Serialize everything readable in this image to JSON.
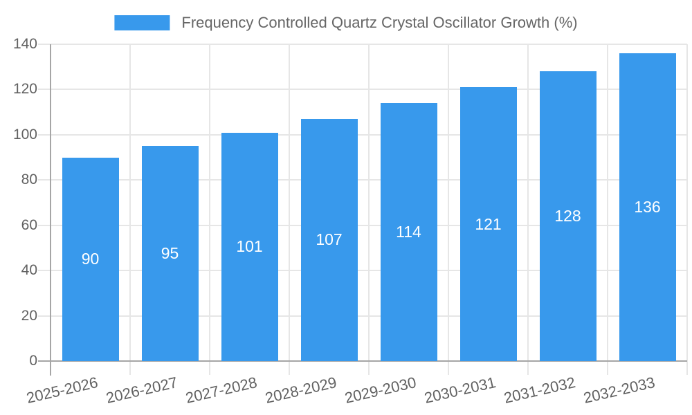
{
  "chart_data": {
    "type": "bar",
    "title": "Frequency Controlled Quartz Crystal Oscillator Growth (%)",
    "categories": [
      "2025-2026",
      "2026-2027",
      "2027-2028",
      "2028-2029",
      "2029-2030",
      "2030-2031",
      "2031-2032",
      "2032-2033"
    ],
    "values": [
      90,
      95,
      101,
      107,
      114,
      121,
      128,
      136
    ],
    "xlabel": "",
    "ylabel": "",
    "ylim": [
      0,
      140
    ],
    "ytick_step": 20,
    "ytick_labels": [
      "0",
      "20",
      "40",
      "60",
      "80",
      "100",
      "120",
      "140"
    ],
    "grid": "on",
    "legend_position": "top-center",
    "colors": {
      "bar": "#3899EC",
      "bar_label_text": "#ffffff",
      "grid_line": "#E6E6E6",
      "axis_line": "#A6A6A6",
      "axis_tick_text": "#616161",
      "legend_text": "#666666",
      "background": "#ffffff"
    }
  }
}
